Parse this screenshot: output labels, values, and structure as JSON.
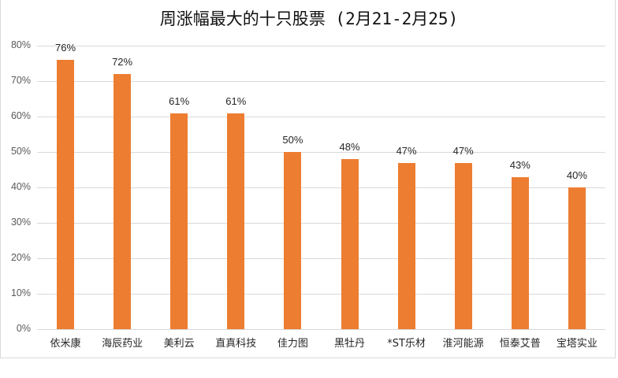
{
  "chart_data": {
    "type": "bar",
    "title": "周涨幅最大的十只股票 (2月21-2月25)",
    "xlabel": "",
    "ylabel": "",
    "categories": [
      "依米康",
      "海辰药业",
      "美利云",
      "直真科技",
      "佳力图",
      "黑牡丹",
      "*ST乐材",
      "淮河能源",
      "恒泰艾普",
      "宝塔实业"
    ],
    "values": [
      76,
      72,
      61,
      61,
      50,
      48,
      47,
      47,
      43,
      40
    ],
    "value_labels": [
      "76%",
      "72%",
      "61%",
      "61%",
      "50%",
      "48%",
      "47%",
      "47%",
      "43%",
      "40%"
    ],
    "ylim": [
      0,
      80
    ],
    "yticks": [
      "0%",
      "10%",
      "20%",
      "30%",
      "40%",
      "50%",
      "60%",
      "70%",
      "80%"
    ],
    "grid": true,
    "legend": null,
    "bar_color": "#ed7d31"
  }
}
